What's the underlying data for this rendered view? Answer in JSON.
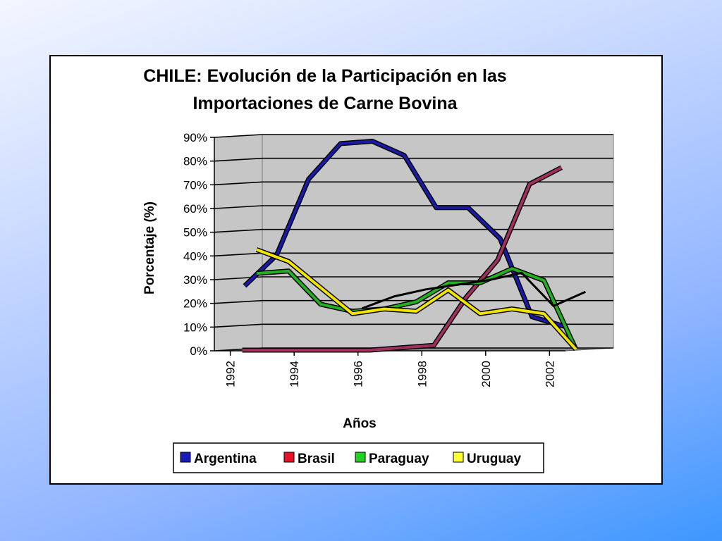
{
  "chart_data": {
    "type": "line",
    "title_lines": [
      "CHILE: Evolución de la Participación en las",
      "Importaciones de Carne Bovina"
    ],
    "ylabel": "Porcentaje (%)",
    "xlabel": "Años",
    "ylim": [
      0,
      90
    ],
    "yticks": [
      "0%",
      "10%",
      "20%",
      "30%",
      "40%",
      "50%",
      "60%",
      "70%",
      "80%",
      "90%"
    ],
    "xtick_labels": [
      "1992",
      "1994",
      "1996",
      "1998",
      "2000",
      "2002"
    ],
    "x": [
      1992,
      1993,
      1994,
      1995,
      1996,
      1997,
      1998,
      1999,
      2000,
      2001,
      2002
    ],
    "grid": true,
    "legend_position": "bottom",
    "series": [
      {
        "name": "Argentina",
        "color": "#1a1aa8",
        "values": [
          27,
          40,
          72,
          87,
          88,
          82,
          60,
          60,
          47,
          14,
          10
        ]
      },
      {
        "name": "Brasil",
        "color": "#a03060",
        "values": [
          0,
          0,
          0,
          0,
          0,
          1,
          2,
          22,
          38,
          70,
          77
        ]
      },
      {
        "name": "Paraguay",
        "color": "#22b022",
        "values": [
          32,
          33,
          19,
          16,
          17,
          20,
          28,
          28,
          34,
          29,
          0
        ]
      },
      {
        "name": "Uruguay",
        "color": "#f2e600",
        "values": [
          42,
          37,
          26,
          15,
          17,
          16,
          25,
          15,
          17,
          15,
          0
        ]
      },
      {
        "name": "",
        "color": "#000000",
        "values": [
          null,
          null,
          null,
          17,
          22,
          25,
          27,
          29,
          32,
          18,
          24
        ]
      }
    ],
    "legend_swatches": [
      {
        "name": "Argentina",
        "swatch": "#1a1ab8"
      },
      {
        "name": "Brasil",
        "swatch": "#e8102a"
      },
      {
        "name": "Paraguay",
        "swatch": "#22d022"
      },
      {
        "name": "Uruguay",
        "swatch": "#ffff33"
      }
    ]
  }
}
